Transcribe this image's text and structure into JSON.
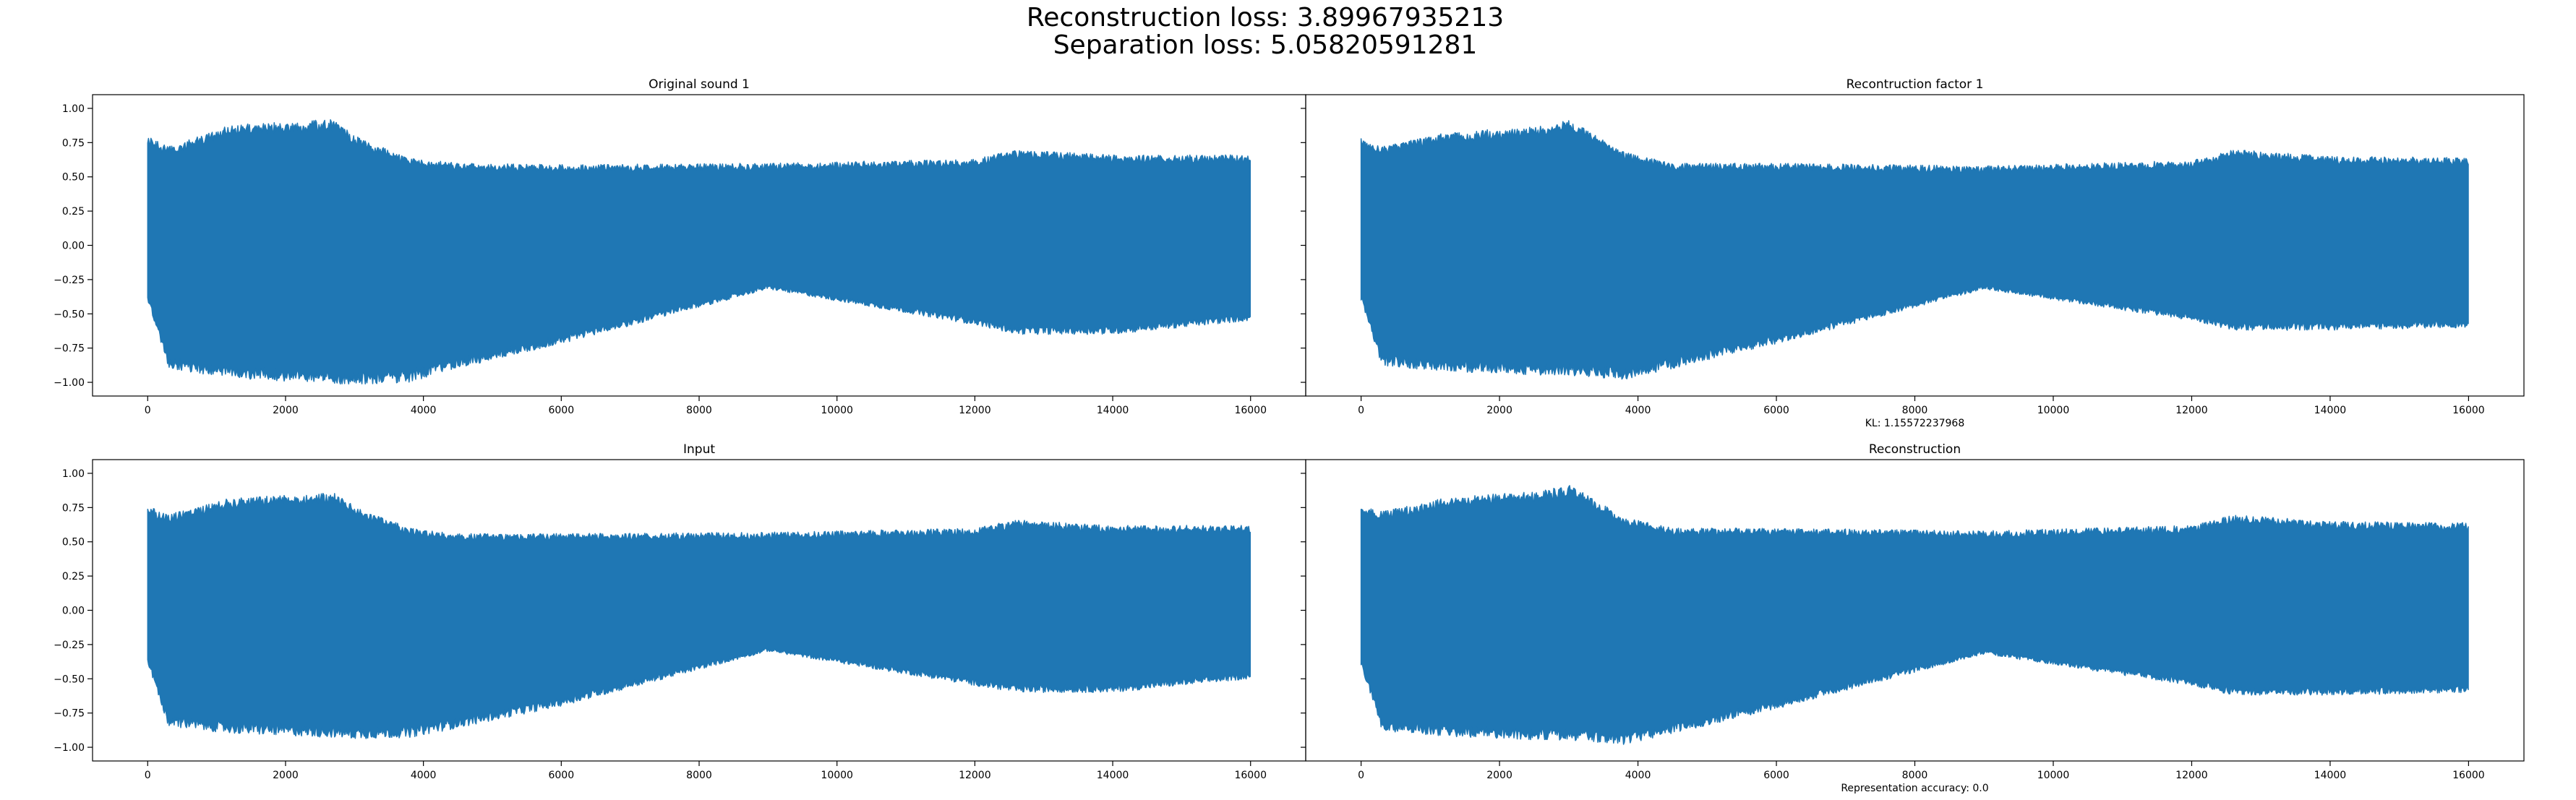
{
  "figure": {
    "suptitle_line1": "Reconstruction loss: 3.89967935213",
    "suptitle_line2": "Separation loss: 5.05820591281"
  },
  "chart_data": [
    {
      "type": "line",
      "title": "Original sound 1",
      "xlabel": "",
      "xlim": [
        -800,
        16800
      ],
      "ylim": [
        -1.1,
        1.1
      ],
      "xticks": [
        0,
        2000,
        4000,
        6000,
        8000,
        10000,
        12000,
        14000,
        16000
      ],
      "yticks": [
        -1.0,
        -0.75,
        -0.5,
        -0.25,
        0.0,
        0.25,
        0.5,
        0.75,
        1.0
      ],
      "ytick_labels": [
        "−1.00",
        "−0.75",
        "−0.50",
        "−0.25",
        "0.00",
        "0.25",
        "0.50",
        "0.75",
        "1.00"
      ],
      "color": "#1f77b4",
      "n_samples": 16000,
      "envelope": {
        "x": [
          0,
          300,
          1200,
          2700,
          3000,
          3800,
          4500,
          6000,
          9000,
          12000,
          12600,
          14000,
          16000
        ],
        "upper": [
          0.8,
          0.72,
          0.88,
          0.92,
          0.8,
          0.64,
          0.6,
          0.59,
          0.6,
          0.63,
          0.7,
          0.66,
          0.66
        ],
        "lower": [
          -0.4,
          -0.9,
          -0.97,
          -1.01,
          -1.02,
          -1.0,
          -0.9,
          -0.72,
          -0.32,
          -0.58,
          -0.65,
          -0.65,
          -0.55
        ]
      }
    },
    {
      "type": "line",
      "title": "Recontruction factor 1",
      "xlabel": "KL: 1.15572237968",
      "xlim": [
        -800,
        16800
      ],
      "ylim": [
        -1.1,
        1.1
      ],
      "xticks": [
        0,
        2000,
        4000,
        6000,
        8000,
        10000,
        12000,
        14000,
        16000
      ],
      "yticks": [
        -1.0,
        -0.75,
        -0.5,
        -0.25,
        0.0,
        0.25,
        0.5,
        0.75,
        1.0
      ],
      "ytick_labels": [
        "−1.00",
        "−0.75",
        "−0.50",
        "−0.25",
        "0.00",
        "0.25",
        "0.50",
        "0.75",
        "1.00"
      ],
      "color": "#1f77b4",
      "n_samples": 16000,
      "envelope": {
        "x": [
          0,
          300,
          1200,
          2700,
          3000,
          3800,
          4500,
          6000,
          9000,
          12000,
          12600,
          14000,
          16000
        ],
        "upper": [
          0.78,
          0.72,
          0.82,
          0.88,
          0.92,
          0.68,
          0.6,
          0.6,
          0.58,
          0.62,
          0.7,
          0.65,
          0.64
        ],
        "lower": [
          -0.4,
          -0.88,
          -0.92,
          -0.95,
          -0.95,
          -0.98,
          -0.9,
          -0.72,
          -0.32,
          -0.55,
          -0.62,
          -0.62,
          -0.6
        ]
      }
    },
    {
      "type": "line",
      "title": "Input",
      "xlabel": "",
      "xlim": [
        -800,
        16800
      ],
      "ylim": [
        -1.1,
        1.1
      ],
      "xticks": [
        0,
        2000,
        4000,
        6000,
        8000,
        10000,
        12000,
        14000,
        16000
      ],
      "yticks": [
        -1.0,
        -0.75,
        -0.5,
        -0.25,
        0.0,
        0.25,
        0.5,
        0.75,
        1.0
      ],
      "ytick_labels": [
        "−1.00",
        "−0.75",
        "−0.50",
        "−0.25",
        "0.00",
        "0.25",
        "0.50",
        "0.75",
        "1.00"
      ],
      "color": "#1f77b4",
      "n_samples": 16000,
      "envelope": {
        "x": [
          0,
          300,
          1200,
          2700,
          3000,
          3800,
          4500,
          6000,
          9000,
          12000,
          12600,
          14000,
          16000
        ],
        "upper": [
          0.76,
          0.7,
          0.82,
          0.86,
          0.76,
          0.6,
          0.56,
          0.56,
          0.57,
          0.6,
          0.66,
          0.62,
          0.62
        ],
        "lower": [
          -0.38,
          -0.85,
          -0.9,
          -0.93,
          -0.94,
          -0.93,
          -0.86,
          -0.7,
          -0.3,
          -0.55,
          -0.6,
          -0.6,
          -0.5
        ]
      }
    },
    {
      "type": "line",
      "title": "Reconstruction",
      "xlabel": "Representation accuracy: 0.0",
      "xlim": [
        -800,
        16800
      ],
      "ylim": [
        -1.1,
        1.1
      ],
      "xticks": [
        0,
        2000,
        4000,
        6000,
        8000,
        10000,
        12000,
        14000,
        16000
      ],
      "yticks": [
        -1.0,
        -0.75,
        -0.5,
        -0.25,
        0.0,
        0.25,
        0.5,
        0.75,
        1.0
      ],
      "ytick_labels": [
        "−1.00",
        "−0.75",
        "−0.50",
        "−0.25",
        "0.00",
        "0.25",
        "0.50",
        "0.75",
        "1.00"
      ],
      "color": "#1f77b4",
      "n_samples": 16000,
      "envelope": {
        "x": [
          0,
          300,
          1200,
          2700,
          3000,
          3800,
          4500,
          6000,
          9000,
          12000,
          12600,
          14000,
          16000
        ],
        "upper": [
          0.78,
          0.72,
          0.82,
          0.88,
          0.92,
          0.68,
          0.6,
          0.6,
          0.58,
          0.62,
          0.7,
          0.65,
          0.64
        ],
        "lower": [
          -0.4,
          -0.88,
          -0.92,
          -0.95,
          -0.95,
          -0.98,
          -0.9,
          -0.72,
          -0.32,
          -0.55,
          -0.62,
          -0.62,
          -0.6
        ]
      }
    }
  ]
}
